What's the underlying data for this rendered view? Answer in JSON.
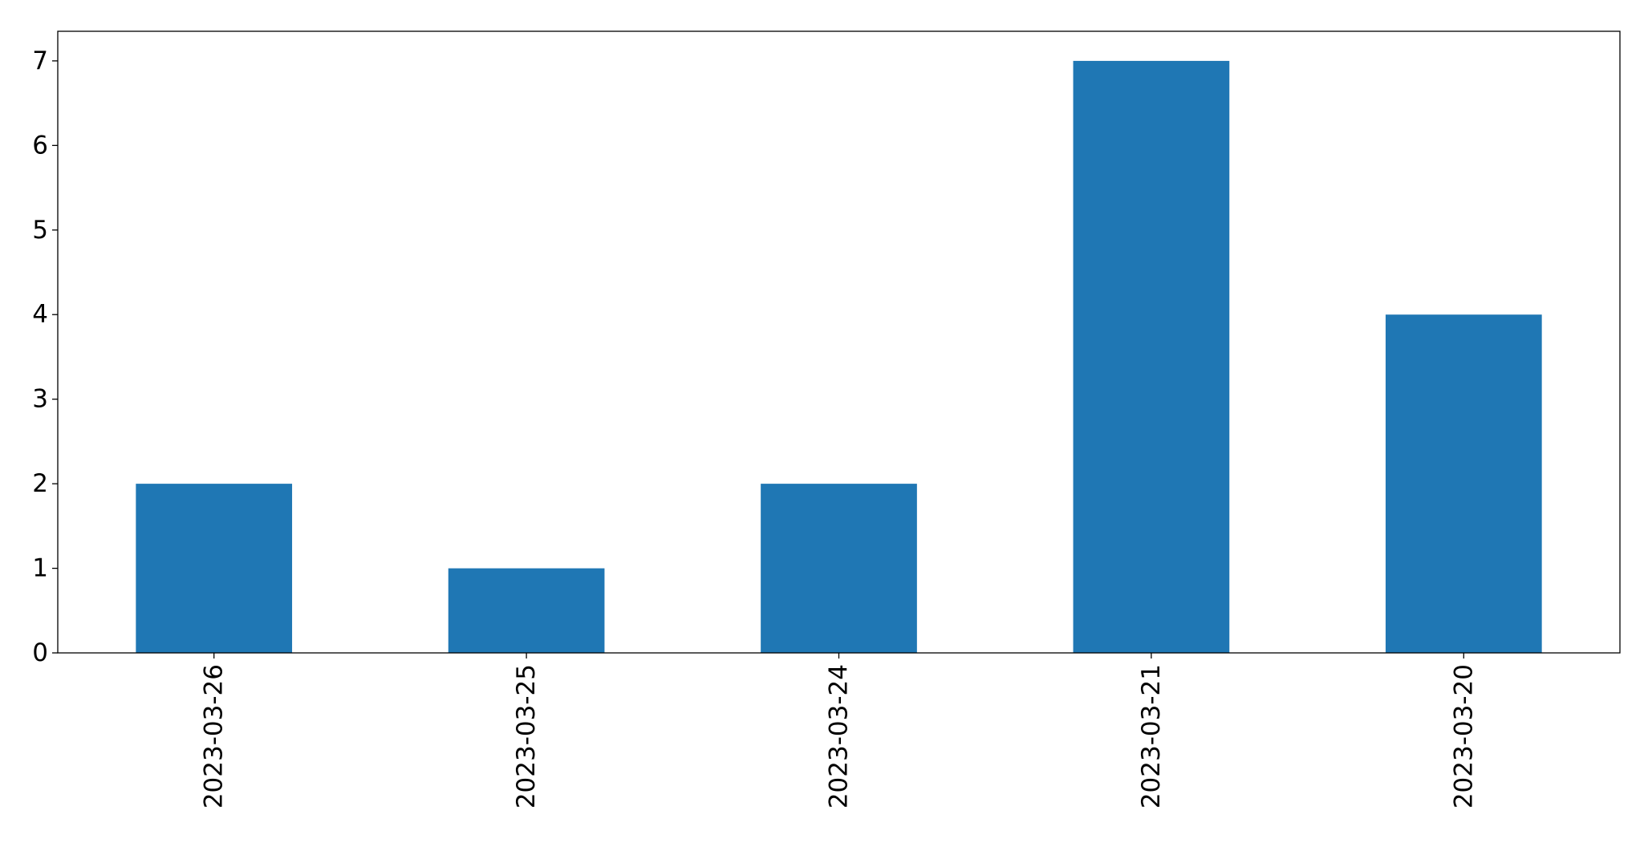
{
  "chart_data": {
    "type": "bar",
    "title": "",
    "xlabel": "",
    "ylabel": "",
    "categories": [
      "2023-03-26",
      "2023-03-25",
      "2023-03-24",
      "2023-03-21",
      "2023-03-20"
    ],
    "values": [
      2,
      1,
      2,
      7,
      4
    ],
    "ylim": [
      0,
      7.35
    ],
    "yticks": [
      0,
      1,
      2,
      3,
      4,
      5,
      6,
      7
    ],
    "xtick_rotation": 90,
    "grid": false,
    "legend": "none",
    "colors": {
      "bar": "#1f77b4",
      "axis": "#000000",
      "background": "#ffffff"
    }
  }
}
